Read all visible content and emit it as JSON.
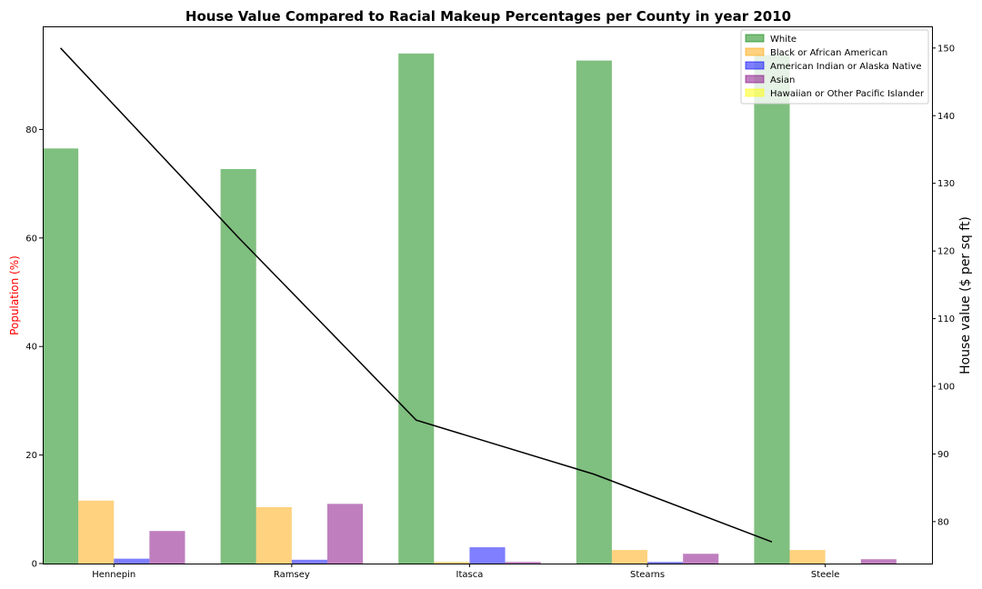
{
  "chart_data": {
    "type": "bar",
    "title": "House Value Compared to Racial Makeup Percentages per County in year 2010",
    "categories": [
      "Hennepin",
      "Ramsey",
      "Itasca",
      "Stearns",
      "Steele"
    ],
    "ylabel": "Population (%)",
    "ylabel_color": "#ff0000",
    "y2label": "House value ($ per sq ft)",
    "ylim": [
      0,
      99
    ],
    "y2lim": [
      73.8,
      153.2
    ],
    "yticks": [
      0,
      20,
      40,
      60,
      80
    ],
    "y2ticks": [
      80,
      90,
      100,
      110,
      120,
      130,
      140,
      150
    ],
    "grid": false,
    "legend_position": "top-right",
    "series": [
      {
        "name": "White",
        "color": "#008000",
        "values": [
          76.5,
          72.7,
          94.0,
          92.7,
          93.7
        ]
      },
      {
        "name": "Black or African American",
        "color": "#ffa500",
        "values": [
          11.6,
          10.4,
          0.3,
          2.5,
          2.5
        ]
      },
      {
        "name": "American Indian or Alaska Native",
        "color": "#0000ff",
        "values": [
          0.9,
          0.7,
          3.0,
          0.3,
          0.0
        ]
      },
      {
        "name": "Asian",
        "color": "#800080",
        "values": [
          6.0,
          11.0,
          0.3,
          1.8,
          0.8
        ]
      },
      {
        "name": "Hawaiian or Other Pacific Islander",
        "color": "#ffff00",
        "values": [
          0.0,
          0.0,
          0.0,
          0.0,
          0.0
        ]
      }
    ],
    "line_series": {
      "axis": "right",
      "color": "#000000",
      "values": [
        150,
        122,
        95,
        87,
        77
      ]
    }
  }
}
